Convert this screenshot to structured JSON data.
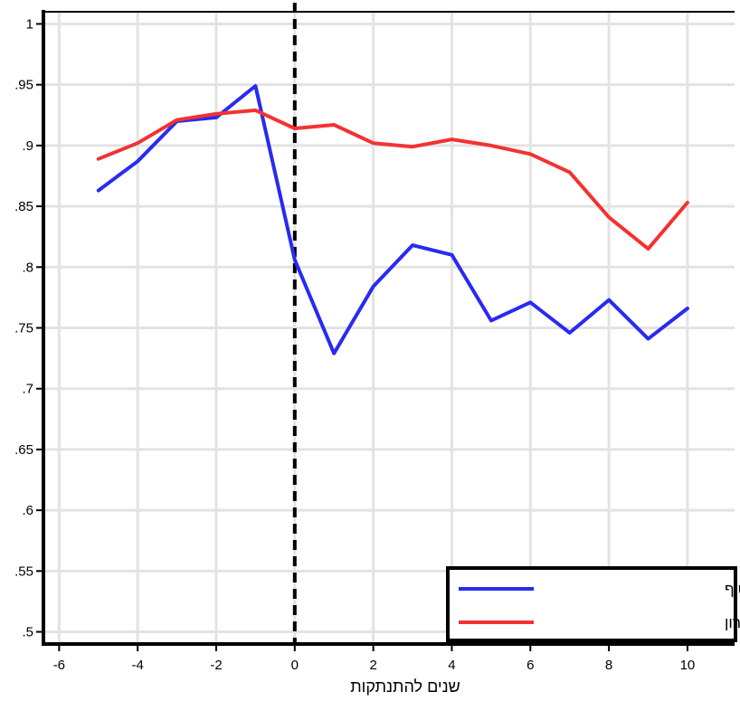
{
  "chart_data": {
    "type": "line",
    "xlabel": "שנים להתנתקות",
    "ylabel": "",
    "xlim": [
      -6.4,
      11.2
    ],
    "ylim": [
      0.49,
      1.01
    ],
    "x_ticks": [
      -6,
      -4,
      -2,
      0,
      2,
      4,
      6,
      8,
      10
    ],
    "x_tick_labels": [
      "-6",
      "-4",
      "-2",
      "0",
      "2",
      "4",
      "6",
      "8",
      "10"
    ],
    "y_ticks": [
      1,
      0.95,
      0.9,
      0.85,
      0.8,
      0.75,
      0.7,
      0.65,
      0.6,
      0.55,
      0.5
    ],
    "y_tick_labels": [
      "1",
      ".95",
      ".9",
      ".85",
      ".8",
      ".75",
      ".7",
      ".65",
      ".6",
      ".55",
      ".5"
    ],
    "grid": true,
    "reference_line": {
      "x": 0,
      "style": "dashed",
      "color": "#000000"
    },
    "legend_position": "bottom-right",
    "series": [
      {
        "name": "מפוני גוש קטיף",
        "color": "#2a2af2",
        "x": [
          -5,
          -4,
          -3,
          -2,
          -1,
          0,
          1,
          2,
          3,
          4,
          5,
          6,
          7,
          8,
          9,
          10
        ],
        "values": [
          0.863,
          0.887,
          0.92,
          0.923,
          0.949,
          0.806,
          0.729,
          0.784,
          0.818,
          0.81,
          0.756,
          0.771,
          0.746,
          0.773,
          0.741,
          0.766
        ]
      },
      {
        "name": "תושבי יהודה ושומרון",
        "color": "#f23232",
        "x": [
          -5,
          -4,
          -3,
          -2,
          -1,
          0,
          1,
          2,
          3,
          4,
          5,
          6,
          7,
          8,
          9,
          10
        ],
        "values": [
          0.889,
          0.902,
          0.921,
          0.926,
          0.929,
          0.914,
          0.917,
          0.902,
          0.899,
          0.905,
          0.9,
          0.893,
          0.878,
          0.841,
          0.815,
          0.853
        ]
      }
    ]
  }
}
